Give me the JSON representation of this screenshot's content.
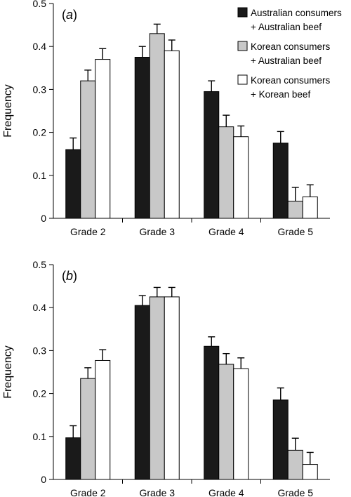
{
  "chart_data": [
    {
      "type": "bar",
      "panel_label": "(a)",
      "panel_letter": "a",
      "ylabel": "Frequency",
      "ylim": [
        0,
        0.5
      ],
      "yticks": [
        "0",
        "0.1",
        "0.2",
        "0.3",
        "0.4",
        "0.5"
      ],
      "categories": [
        "Grade 2",
        "Grade 3",
        "Grade 4",
        "Grade 5"
      ],
      "legend_position": "top-right",
      "series": [
        {
          "name": "Australian consumers + Australian beef",
          "name_line1": "Australian consumers",
          "name_line2": "+ Australian beef",
          "color": "#1a1a1a",
          "values": [
            0.16,
            0.375,
            0.295,
            0.175
          ],
          "errors": [
            0.027,
            0.025,
            0.025,
            0.027
          ]
        },
        {
          "name": "Korean consumers + Australian beef",
          "name_line1": "Korean consumers",
          "name_line2": "+ Australian beef",
          "color": "#c8c8c8",
          "values": [
            0.32,
            0.43,
            0.213,
            0.04
          ],
          "errors": [
            0.025,
            0.022,
            0.027,
            0.032
          ]
        },
        {
          "name": "Korean consumers + Korean beef",
          "name_line1": "Korean consumers",
          "name_line2": "+ Korean beef",
          "color": "#ffffff",
          "values": [
            0.37,
            0.39,
            0.19,
            0.05
          ],
          "errors": [
            0.025,
            0.025,
            0.025,
            0.028
          ]
        }
      ]
    },
    {
      "type": "bar",
      "panel_label": "(b)",
      "panel_letter": "b",
      "ylabel": "Frequency",
      "ylim": [
        0,
        0.5
      ],
      "yticks": [
        "0",
        "0.1",
        "0.2",
        "0.3",
        "0.4",
        "0.5"
      ],
      "categories": [
        "Grade 2",
        "Grade 3",
        "Grade 4",
        "Grade 5"
      ],
      "series": [
        {
          "name": "Australian consumers + Australian beef",
          "color": "#1a1a1a",
          "values": [
            0.097,
            0.405,
            0.31,
            0.185
          ],
          "errors": [
            0.028,
            0.023,
            0.022,
            0.028
          ]
        },
        {
          "name": "Korean consumers + Australian beef",
          "color": "#c8c8c8",
          "values": [
            0.235,
            0.425,
            0.268,
            0.068
          ],
          "errors": [
            0.025,
            0.022,
            0.025,
            0.028
          ]
        },
        {
          "name": "Korean consumers + Korean beef",
          "color": "#ffffff",
          "values": [
            0.277,
            0.425,
            0.258,
            0.035
          ],
          "errors": [
            0.025,
            0.022,
            0.025,
            0.028
          ]
        }
      ]
    }
  ]
}
